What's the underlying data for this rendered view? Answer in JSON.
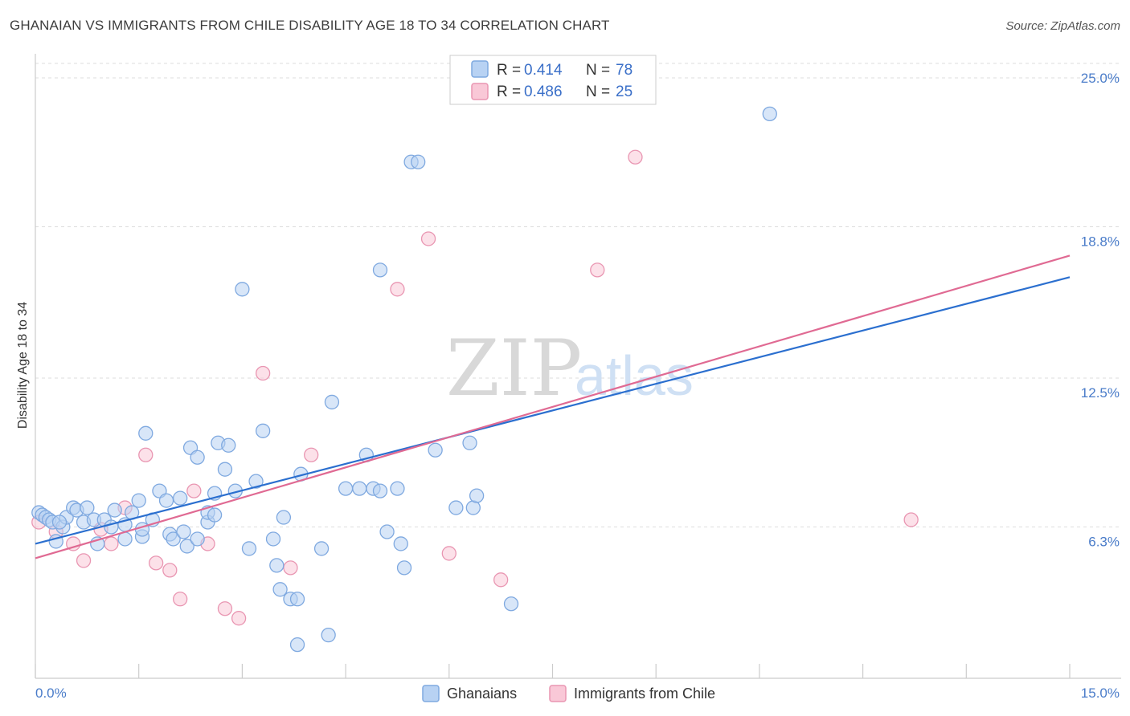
{
  "title": "GHANAIAN VS IMMIGRANTS FROM CHILE DISABILITY AGE 18 TO 34 CORRELATION CHART",
  "source": "Source: ZipAtlas.com",
  "watermark": {
    "zip": "ZIP",
    "atlas": "atlas"
  },
  "colors": {
    "blue_fill": "#b8d2f3",
    "blue_stroke": "#7fa9e0",
    "blue_line": "#2b6fcf",
    "pink_fill": "#f9c8d7",
    "pink_stroke": "#e996b2",
    "pink_line": "#e06a93",
    "grid": "#dddddd",
    "tick_text": "#4a7cc9"
  },
  "legend": {
    "rows": [
      {
        "r_label": "R =",
        "r_value": "0.414",
        "n_label": "N =",
        "n_value": "78"
      },
      {
        "r_label": "R =",
        "r_value": "0.486",
        "n_label": "N =",
        "n_value": "25"
      }
    ]
  },
  "chart_data": {
    "type": "scatter",
    "title": "GHANAIAN VS IMMIGRANTS FROM CHILE DISABILITY AGE 18 TO 34 CORRELATION CHART",
    "xlabel": "",
    "ylabel": "Disability Age 18 to 34",
    "xlim": [
      0,
      15
    ],
    "ylim": [
      0,
      25.5
    ],
    "x_tick_labels": [
      "0.0%",
      "15.0%"
    ],
    "y_ticks": [
      6.3,
      12.5,
      18.8,
      25.0
    ],
    "y_tick_labels": [
      "6.3%",
      "12.5%",
      "18.8%",
      "25.0%"
    ],
    "grid": true,
    "legend_position": "top-center",
    "series": [
      {
        "name": "Ghanaians",
        "r": 0.414,
        "n": 78,
        "trend": {
          "x": [
            0,
            15
          ],
          "y": [
            5.6,
            16.7
          ]
        },
        "points": [
          [
            0.05,
            6.9
          ],
          [
            0.1,
            6.8
          ],
          [
            0.15,
            6.7
          ],
          [
            0.2,
            6.6
          ],
          [
            0.25,
            6.5
          ],
          [
            0.3,
            5.7
          ],
          [
            0.4,
            6.3
          ],
          [
            0.45,
            6.7
          ],
          [
            0.55,
            7.1
          ],
          [
            0.6,
            7.0
          ],
          [
            0.7,
            6.5
          ],
          [
            0.75,
            7.1
          ],
          [
            0.85,
            6.6
          ],
          [
            0.9,
            5.6
          ],
          [
            1.0,
            6.6
          ],
          [
            1.1,
            6.3
          ],
          [
            1.15,
            7.0
          ],
          [
            1.3,
            6.4
          ],
          [
            1.3,
            5.8
          ],
          [
            1.4,
            6.9
          ],
          [
            1.5,
            7.4
          ],
          [
            1.55,
            5.9
          ],
          [
            1.6,
            10.2
          ],
          [
            1.7,
            6.6
          ],
          [
            1.8,
            7.8
          ],
          [
            1.9,
            7.4
          ],
          [
            1.95,
            6.0
          ],
          [
            2.0,
            5.8
          ],
          [
            2.1,
            7.5
          ],
          [
            2.15,
            6.1
          ],
          [
            2.2,
            5.5
          ],
          [
            2.25,
            9.6
          ],
          [
            2.35,
            5.8
          ],
          [
            2.35,
            9.2
          ],
          [
            2.5,
            6.5
          ],
          [
            2.5,
            6.9
          ],
          [
            2.6,
            7.7
          ],
          [
            2.65,
            9.8
          ],
          [
            2.75,
            8.7
          ],
          [
            2.8,
            9.7
          ],
          [
            2.9,
            7.8
          ],
          [
            3.0,
            16.2
          ],
          [
            3.1,
            5.4
          ],
          [
            3.2,
            8.2
          ],
          [
            3.3,
            10.3
          ],
          [
            3.45,
            5.8
          ],
          [
            3.5,
            4.7
          ],
          [
            3.55,
            3.7
          ],
          [
            3.6,
            6.7
          ],
          [
            3.7,
            3.3
          ],
          [
            3.8,
            3.3
          ],
          [
            3.85,
            8.5
          ],
          [
            3.8,
            1.4
          ],
          [
            4.15,
            5.4
          ],
          [
            4.25,
            1.8
          ],
          [
            4.3,
            11.5
          ],
          [
            4.5,
            7.9
          ],
          [
            4.7,
            7.9
          ],
          [
            4.8,
            9.3
          ],
          [
            4.9,
            7.9
          ],
          [
            5.0,
            7.8
          ],
          [
            5.0,
            17.0
          ],
          [
            5.1,
            6.1
          ],
          [
            5.25,
            7.9
          ],
          [
            5.3,
            5.6
          ],
          [
            5.35,
            4.6
          ],
          [
            5.45,
            21.5
          ],
          [
            5.55,
            21.5
          ],
          [
            5.8,
            9.5
          ],
          [
            6.1,
            7.1
          ],
          [
            6.3,
            9.8
          ],
          [
            6.35,
            7.1
          ],
          [
            6.4,
            7.6
          ],
          [
            6.9,
            3.1
          ],
          [
            10.65,
            23.5
          ],
          [
            1.55,
            6.2
          ],
          [
            2.6,
            6.8
          ],
          [
            0.35,
            6.5
          ]
        ]
      },
      {
        "name": "Immigrants from Chile",
        "r": 0.486,
        "n": 25,
        "trend": {
          "x": [
            0,
            15
          ],
          "y": [
            5.0,
            17.6
          ]
        },
        "points": [
          [
            0.05,
            6.5
          ],
          [
            0.3,
            6.1
          ],
          [
            0.55,
            5.6
          ],
          [
            0.7,
            4.9
          ],
          [
            0.95,
            6.2
          ],
          [
            1.1,
            5.6
          ],
          [
            1.3,
            7.1
          ],
          [
            1.6,
            9.3
          ],
          [
            1.75,
            4.8
          ],
          [
            1.95,
            4.5
          ],
          [
            2.1,
            3.3
          ],
          [
            2.3,
            7.8
          ],
          [
            2.5,
            5.6
          ],
          [
            2.75,
            2.9
          ],
          [
            2.95,
            2.5
          ],
          [
            3.3,
            12.7
          ],
          [
            3.7,
            4.6
          ],
          [
            4.0,
            9.3
          ],
          [
            5.25,
            16.2
          ],
          [
            5.7,
            18.3
          ],
          [
            6.0,
            5.2
          ],
          [
            6.75,
            4.1
          ],
          [
            8.15,
            17.0
          ],
          [
            8.7,
            21.7
          ],
          [
            12.7,
            6.6
          ]
        ]
      }
    ]
  },
  "bottom_legend": [
    {
      "label": "Ghanaians"
    },
    {
      "label": "Immigrants from Chile"
    }
  ]
}
